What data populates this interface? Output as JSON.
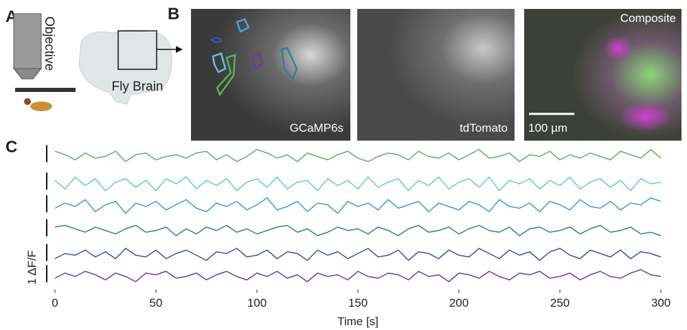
{
  "figure": {
    "panel_labels": [
      "A",
      "B",
      "C"
    ],
    "panel_a": {
      "objective_label": "Objective",
      "brain_label": "Fly Brain"
    },
    "panel_b": {
      "image_labels": [
        "GCaMP6s",
        "tdTomato",
        "Composite"
      ],
      "scale_bar_label": "100 µm"
    }
  },
  "chart_data": {
    "type": "line",
    "xlabel": "Time [s]",
    "scale_label": "1 ΔF/F",
    "x": [
      0,
      5,
      10,
      15,
      20,
      25,
      30,
      35,
      40,
      45,
      50,
      55,
      60,
      65,
      70,
      75,
      80,
      85,
      90,
      95,
      100,
      105,
      110,
      115,
      120,
      125,
      130,
      135,
      140,
      145,
      150,
      155,
      160,
      165,
      170,
      175,
      180,
      185,
      190,
      195,
      200,
      205,
      210,
      215,
      220,
      225,
      230,
      235,
      240,
      245,
      250,
      255,
      260,
      265,
      270,
      275,
      280,
      285,
      290,
      295,
      300
    ],
    "xlim": [
      0,
      300
    ],
    "xticks": [
      0,
      50,
      100,
      150,
      200,
      250,
      300
    ],
    "series": [
      {
        "color": "#5ab25a",
        "values": [
          0.3,
          0.1,
          -0.2,
          0.2,
          -0.1,
          0.0,
          0.3,
          -0.3,
          0.1,
          0.2,
          -0.2,
          0.0,
          0.1,
          -0.1,
          0.2,
          0.3,
          -0.2,
          0.1,
          -0.3,
          0.0,
          0.4,
          0.2,
          -0.1,
          0.1,
          -0.3,
          0.2,
          0.0,
          -0.2,
          0.1,
          0.3,
          -0.1,
          -0.3,
          0.0,
          0.2,
          0.1,
          -0.2,
          0.3,
          0.0,
          -0.1,
          0.2,
          -0.2,
          0.1,
          0.4,
          -0.1,
          0.0,
          0.2,
          -0.3,
          0.1,
          0.0,
          0.3,
          -0.2,
          0.1,
          -0.1,
          0.2,
          0.0,
          -0.2,
          0.3,
          0.1,
          -0.1,
          0.4,
          -0.1
        ]
      },
      {
        "color": "#66c6d6",
        "values": [
          0.2,
          -0.3,
          0.4,
          -0.1,
          0.3,
          -0.4,
          0.1,
          0.3,
          -0.2,
          0.2,
          -0.4,
          0.3,
          0.0,
          0.4,
          -0.3,
          0.2,
          -0.1,
          0.3,
          -0.4,
          0.1,
          0.3,
          -0.2,
          0.4,
          -0.3,
          0.1,
          0.2,
          -0.4,
          0.3,
          -0.1,
          0.2,
          -0.3,
          0.4,
          -0.2,
          0.1,
          0.3,
          -0.4,
          0.2,
          -0.1,
          0.4,
          -0.3,
          0.1,
          0.3,
          -0.2,
          0.4,
          -0.4,
          0.2,
          0.0,
          0.3,
          -0.3,
          0.2,
          -0.1,
          0.4,
          -0.3,
          0.1,
          0.3,
          -0.2,
          0.2,
          -0.4,
          0.3,
          0.0,
          0.1
        ]
      },
      {
        "color": "#3a9ccb",
        "values": [
          -0.1,
          0.2,
          0.0,
          0.4,
          -0.3,
          0.1,
          0.3,
          -0.4,
          0.2,
          0.0,
          0.3,
          -0.2,
          0.1,
          0.4,
          -0.1,
          -0.3,
          0.2,
          0.0,
          0.3,
          -0.2,
          0.1,
          0.5,
          -0.2,
          0.0,
          0.3,
          -0.3,
          0.2,
          0.1,
          -0.4,
          0.3,
          0.0,
          0.2,
          -0.2,
          0.4,
          -0.1,
          0.1,
          0.3,
          -0.3,
          0.2,
          0.0,
          -0.2,
          0.3,
          0.1,
          -0.3,
          0.4,
          0.0,
          -0.1,
          0.2,
          -0.3,
          0.3,
          0.1,
          -0.2,
          0.4,
          0.0,
          -0.1,
          0.3,
          -0.2,
          0.2,
          0.1,
          0.5,
          0.3
        ]
      },
      {
        "color": "#2f7f9f",
        "values": [
          0.2,
          0.3,
          0.1,
          -0.1,
          0.2,
          0.0,
          -0.2,
          0.1,
          0.3,
          -0.1,
          0.0,
          0.2,
          -0.3,
          0.1,
          -0.2,
          0.2,
          0.0,
          0.3,
          -0.1,
          0.1,
          -0.2,
          0.0,
          0.2,
          0.3,
          -0.1,
          0.1,
          -0.3,
          -0.1,
          0.2,
          0.0,
          0.1,
          -0.2,
          0.2,
          0.0,
          -0.3,
          0.1,
          0.3,
          -0.1,
          0.0,
          0.2,
          -0.2,
          0.1,
          0.3,
          0.0,
          -0.1,
          0.2,
          -0.3,
          0.1,
          0.2,
          -0.1,
          0.0,
          0.2,
          -0.2,
          0.1,
          0.3,
          -0.1,
          0.0,
          0.2,
          -0.2,
          -0.1,
          -0.3
        ]
      },
      {
        "color": "#31569e",
        "values": [
          -0.2,
          0.1,
          0.0,
          0.3,
          -0.1,
          0.2,
          -0.2,
          0.4,
          0.0,
          -0.1,
          0.3,
          -0.2,
          0.1,
          0.3,
          0.0,
          -0.3,
          0.2,
          0.1,
          0.4,
          -0.1,
          0.0,
          0.3,
          -0.2,
          0.2,
          0.1,
          -0.3,
          0.3,
          0.0,
          0.2,
          -0.2,
          0.1,
          0.4,
          -0.1,
          0.0,
          0.3,
          -0.3,
          0.2,
          0.1,
          -0.2,
          0.3,
          0.0,
          -0.1,
          0.4,
          0.1,
          -0.2,
          0.3,
          0.0,
          0.2,
          -0.3,
          0.2,
          0.4,
          0.0,
          -0.2,
          0.3,
          0.1,
          -0.1,
          0.3,
          -0.2,
          0.2,
          0.1,
          -0.1
        ]
      },
      {
        "color": "#6a3d9a",
        "values": [
          -0.1,
          0.2,
          0.0,
          0.3,
          0.1,
          -0.2,
          0.2,
          0.0,
          -0.3,
          0.2,
          0.1,
          0.3,
          -0.1,
          0.0,
          0.2,
          -0.2,
          0.1,
          0.3,
          0.0,
          -0.2,
          0.2,
          0.0,
          0.3,
          -0.1,
          0.1,
          -0.3,
          0.2,
          0.0,
          0.1,
          -0.2,
          0.3,
          0.0,
          -0.1,
          0.2,
          0.1,
          -0.2,
          0.3,
          0.0,
          0.1,
          -0.3,
          0.2,
          0.1,
          -0.1,
          0.3,
          0.0,
          -0.2,
          0.2,
          0.1,
          0.3,
          -0.1,
          0.0,
          0.2,
          -0.2,
          0.1,
          0.3,
          0.0,
          -0.1,
          0.2,
          0.4,
          0.1,
          0.0
        ]
      }
    ]
  }
}
